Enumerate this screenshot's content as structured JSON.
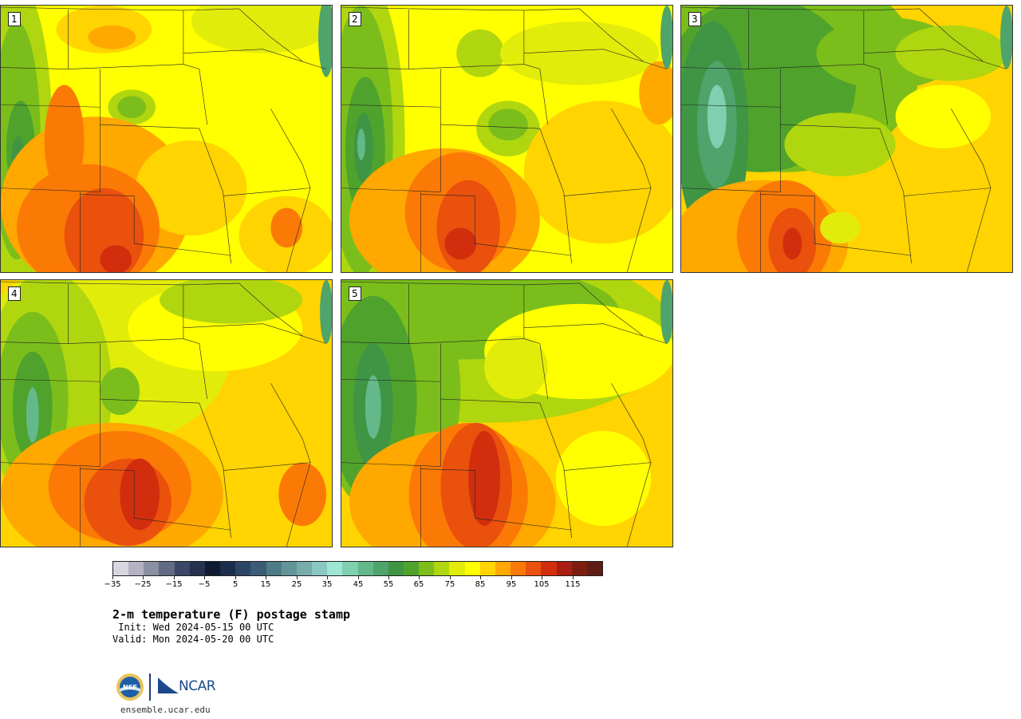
{
  "panels": [
    {
      "label": "1"
    },
    {
      "label": "2"
    },
    {
      "label": "3"
    },
    {
      "label": "4"
    },
    {
      "label": "5"
    }
  ],
  "colorbar": {
    "colors": [
      "#d7d7e1",
      "#b3b3c4",
      "#8b8fa3",
      "#626b84",
      "#3a4766",
      "#24324f",
      "#0f1a33",
      "#1a2d4b",
      "#2b4664",
      "#3a5d75",
      "#4f7a88",
      "#63949a",
      "#76adab",
      "#8ac7c1",
      "#9de6d6",
      "#7fd0b0",
      "#63b98a",
      "#4ea46a",
      "#409545",
      "#4fa22c",
      "#7bbe1b",
      "#b0d60f",
      "#e2ec0a",
      "#ffff00",
      "#ffd400",
      "#ffa800",
      "#fb7a06",
      "#e9510d",
      "#d22e0e",
      "#a81e12",
      "#7d1d10",
      "#611b15"
    ],
    "tick_labels": [
      "−35",
      "−25",
      "−15",
      "−5",
      "5",
      "15",
      "25",
      "35",
      "45",
      "55",
      "65",
      "75",
      "85",
      "95",
      "105",
      "115"
    ]
  },
  "title": "2-m temperature (F) postage stamp",
  "init_line": " Init: Wed 2024-05-15 00 UTC",
  "valid_line": "Valid: Mon 2024-05-20 00 UTC",
  "footer": {
    "logo_text": "NCAR",
    "nsf_text": "NSF",
    "url": "ensemble.ucar.edu"
  }
}
